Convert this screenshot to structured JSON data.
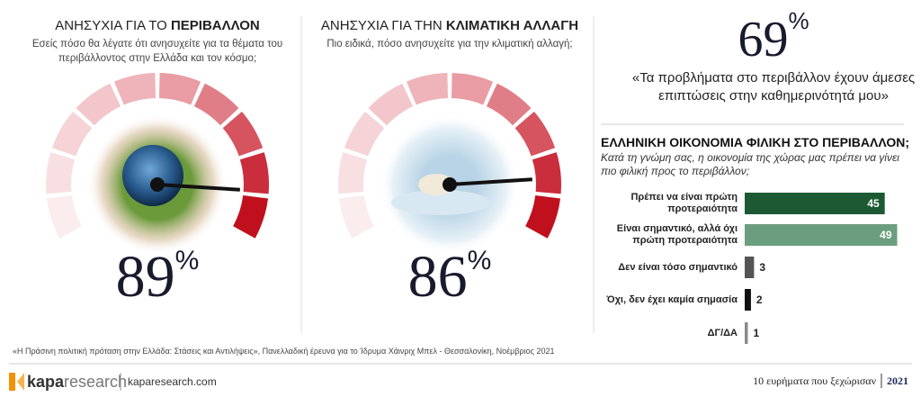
{
  "panels": [
    {
      "title_plain": "ΑΝΗΣΥΧΙΑ ΓΙΑ ΤΟ",
      "title_bold": "ΠΕΡΙΒΑΛΛΟΝ",
      "subtitle": "Εσείς πόσο θα λέγατε ότι ανησυχείτε για τα θέματα του περιβάλλοντος στην Ελλάδα και τον κόσμο;",
      "value": 89,
      "unit": "%"
    },
    {
      "title_plain": "ΑΝΗΣΥΧΙΑ ΓΙΑ ΤΗΝ",
      "title_bold": "ΚΛΙΜΑΤΙΚΗ ΑΛΛΑΓΗ",
      "subtitle": "Πιο ειδικά, πόσο ανησυχείτε για την κλιματική αλλαγή;",
      "value": 86,
      "unit": "%"
    }
  ],
  "quote": {
    "value": 69,
    "unit": "%",
    "text": "«Τα προβλήματα στο περιβάλλον έχουν άμεσες επιπτώσεις στην καθημερινότητά μου»"
  },
  "chart_data": {
    "type": "hbar",
    "title": "ΕΛΛΗΝΙΚΗ ΟΙΚΟΝΟΜΙΑ ΦΙΛΙΚΗ ΣΤΟ ΠΕΡΙΒΑΛΛΟΝ;",
    "subtitle": "Κατά τη γνώμη σας, η οικονομία της χώρας μας πρέπει να γίνει πιο φιλική προς το περιβάλλον;",
    "categories": [
      "Πρέπει να είναι πρώτη προτεραιότητα",
      "Είναι σημαντικό, αλλά όχι πρώτη προτεραιότητα",
      "Δεν είναι τόσο σημαντικό",
      "Όχι, δεν έχει καμία σημασία",
      "ΔΓ/ΔΑ"
    ],
    "values": [
      45,
      49,
      3,
      2,
      1
    ],
    "colors": [
      "#1d5a34",
      "#6b9e7e",
      "#555555",
      "#111111",
      "#8a8a8a"
    ]
  },
  "footer": {
    "source": "«Η Πράσινη πολιτική πρόταση στην Ελλάδα: Στάσεις και Αντιλήψεις», Πανελλαδική έρευνα για το Ίδρυμα Χάινριχ Μπελ - Θεσσαλονίκη, Νοέμβριος 2021",
    "brand_bold": "kapa",
    "brand_light": "research",
    "site": "kaparesearch.com",
    "series_title": "10 ευρήματα που ξεχώρισαν",
    "year": "2021"
  }
}
